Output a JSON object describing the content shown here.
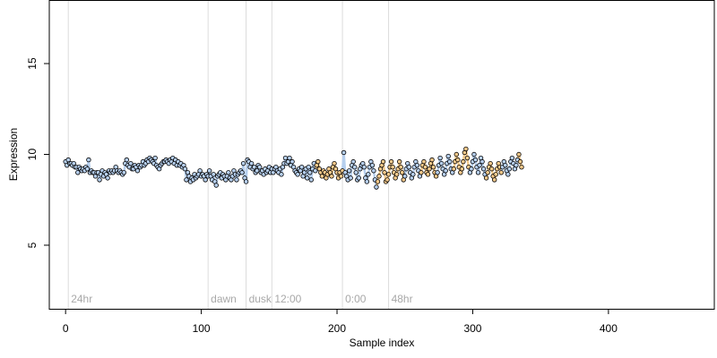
{
  "chart_data": {
    "type": "scatter",
    "title": "",
    "xlabel": "Sample index",
    "ylabel": "Expression",
    "xlim": [
      -12,
      478
    ],
    "ylim": [
      1.5,
      18.5
    ],
    "x_ticks": [
      0,
      100,
      200,
      300,
      400
    ],
    "y_ticks": [
      5,
      10,
      15
    ],
    "grid": false,
    "legend": "none",
    "colors": {
      "light": "#f3c98b",
      "dark": "#b6cfee",
      "line_light": "#f3c98b",
      "line_dark": "#b6cfee",
      "vline": "#dcdcdc",
      "point_stroke": "#000000"
    },
    "vertical_markers": [
      {
        "x": 2,
        "label": "24hr"
      },
      {
        "x": 105,
        "label": "dawn"
      },
      {
        "x": 133,
        "label": "dusk"
      },
      {
        "x": 152,
        "label": "12:00"
      },
      {
        "x": 204,
        "label": "0:00"
      },
      {
        "x": 238,
        "label": "48hr"
      }
    ],
    "series": [
      {
        "y": [
          9.6,
          9.4,
          9.7,
          9.5,
          9.5,
          9.4,
          9.5,
          9.3,
          9.3,
          9.0,
          9.3,
          9.2,
          9.1,
          9.2,
          9.1,
          9.3,
          9.2,
          9.7,
          9.0,
          9.1,
          9.0,
          9.0,
          8.8,
          9.0,
          9.0,
          8.6,
          8.9,
          9.1,
          8.8,
          9.0,
          8.9,
          8.7,
          9.1,
          9.0,
          9.1,
          9.0,
          9.1,
          9.3,
          9.1,
          9.0,
          9.1,
          9.0,
          8.9,
          9.0,
          9.5,
          9.7,
          9.4,
          9.3,
          9.5,
          9.2,
          9.2,
          9.4,
          9.3,
          9.1,
          9.4,
          9.3,
          9.4,
          9.6,
          9.4,
          9.5,
          9.7,
          9.6,
          9.8,
          9.7,
          9.6,
          9.5,
          9.8,
          9.4,
          9.3,
          9.2,
          9.4,
          9.5,
          9.6,
          9.6,
          9.7,
          9.6,
          9.5,
          9.7,
          9.6,
          9.8,
          9.5,
          9.7,
          9.4,
          9.6,
          9.4,
          9.5,
          9.3,
          9.4,
          9.2,
          8.6,
          9.0,
          8.8,
          8.5,
          8.7,
          8.6,
          8.9,
          8.7,
          8.8,
          8.9,
          9.1,
          8.8,
          8.9,
          8.8,
          8.6,
          8.9,
          8.8,
          9.1,
          8.8,
          8.6,
          8.9,
          8.5,
          8.3,
          8.8,
          8.9,
          9.0,
          8.7,
          8.9,
          8.8,
          8.6,
          8.8,
          9.0,
          8.7,
          8.6,
          8.8,
          9.1,
          8.9,
          8.6,
          8.9,
          9.0,
          9.1,
          9.0,
          9.5,
          8.7,
          8.5,
          9.7,
          9.6,
          9.3,
          9.5,
          9.2,
          9.3,
          9.0,
          9.1,
          9.4,
          9.3,
          9.0,
          9.1,
          8.9,
          9.2,
          9.0,
          9.1,
          9.3,
          9.0,
          9.2,
          9.0,
          9.2,
          9.3,
          9.1,
          9.0,
          9.2,
          8.9,
          9.3,
          9.5,
          9.8,
          9.5,
          9.6,
          9.8,
          9.4,
          9.6,
          9.3,
          9.1,
          9.0,
          8.9,
          9.2,
          9.1,
          9.3,
          8.8,
          9.0,
          9.2,
          8.7,
          9.3,
          9.0,
          8.6,
          9.2,
          9.5,
          9.1,
          9.4,
          9.6,
          9.2,
          9.0,
          8.8,
          9.1,
          9.0,
          8.7,
          8.9,
          9.2,
          9.0,
          8.8,
          9.3,
          9.5,
          9.2,
          9.0,
          8.7,
          9.0,
          8.8,
          9.1,
          10.1,
          9.0,
          8.8,
          8.6,
          9.1,
          8.7,
          9.4,
          9.6,
          9.3,
          9.0,
          8.6,
          8.7,
          9.2,
          9.4,
          9.5,
          9.3,
          8.7,
          8.5,
          8.9,
          9.3,
          9.6,
          9.4,
          9.1,
          8.6,
          8.2,
          8.5,
          8.8,
          9.2,
          9.4,
          9.6,
          9.0,
          8.5,
          8.6,
          8.9,
          9.3,
          9.6,
          9.3,
          9.0,
          8.7,
          8.9,
          9.2,
          9.6,
          9.3,
          9.0,
          8.6,
          8.8,
          9.2,
          9.5,
          9.3,
          9.0,
          8.7,
          8.9,
          9.3,
          9.6,
          9.4,
          9.1,
          8.8,
          9.0,
          9.4,
          9.6,
          9.3,
          9.0,
          8.9,
          9.2,
          9.5,
          9.7,
          9.3,
          9.0,
          8.8,
          9.0,
          9.4,
          9.8,
          9.5,
          9.2,
          8.9,
          9.1,
          9.5,
          9.9,
          9.6,
          9.2,
          9.0,
          9.2,
          9.6,
          10.0,
          9.7,
          9.3,
          9.0,
          9.2,
          9.6,
          10.1,
          10.3,
          9.8,
          9.3,
          9.0,
          9.2,
          9.6,
          10.0,
          9.7,
          9.3,
          9.0,
          9.4,
          9.8,
          9.6,
          9.2,
          8.9,
          8.7,
          9.0,
          9.3,
          9.5,
          9.2,
          8.8,
          8.6,
          8.9,
          9.2,
          9.5,
          9.3,
          9.0,
          9.3,
          9.6,
          9.4,
          9.1,
          8.9,
          9.2,
          9.6,
          9.8,
          9.5,
          9.2,
          9.4,
          9.7,
          10.0,
          9.6,
          9.3
        ]
      }
    ]
  }
}
